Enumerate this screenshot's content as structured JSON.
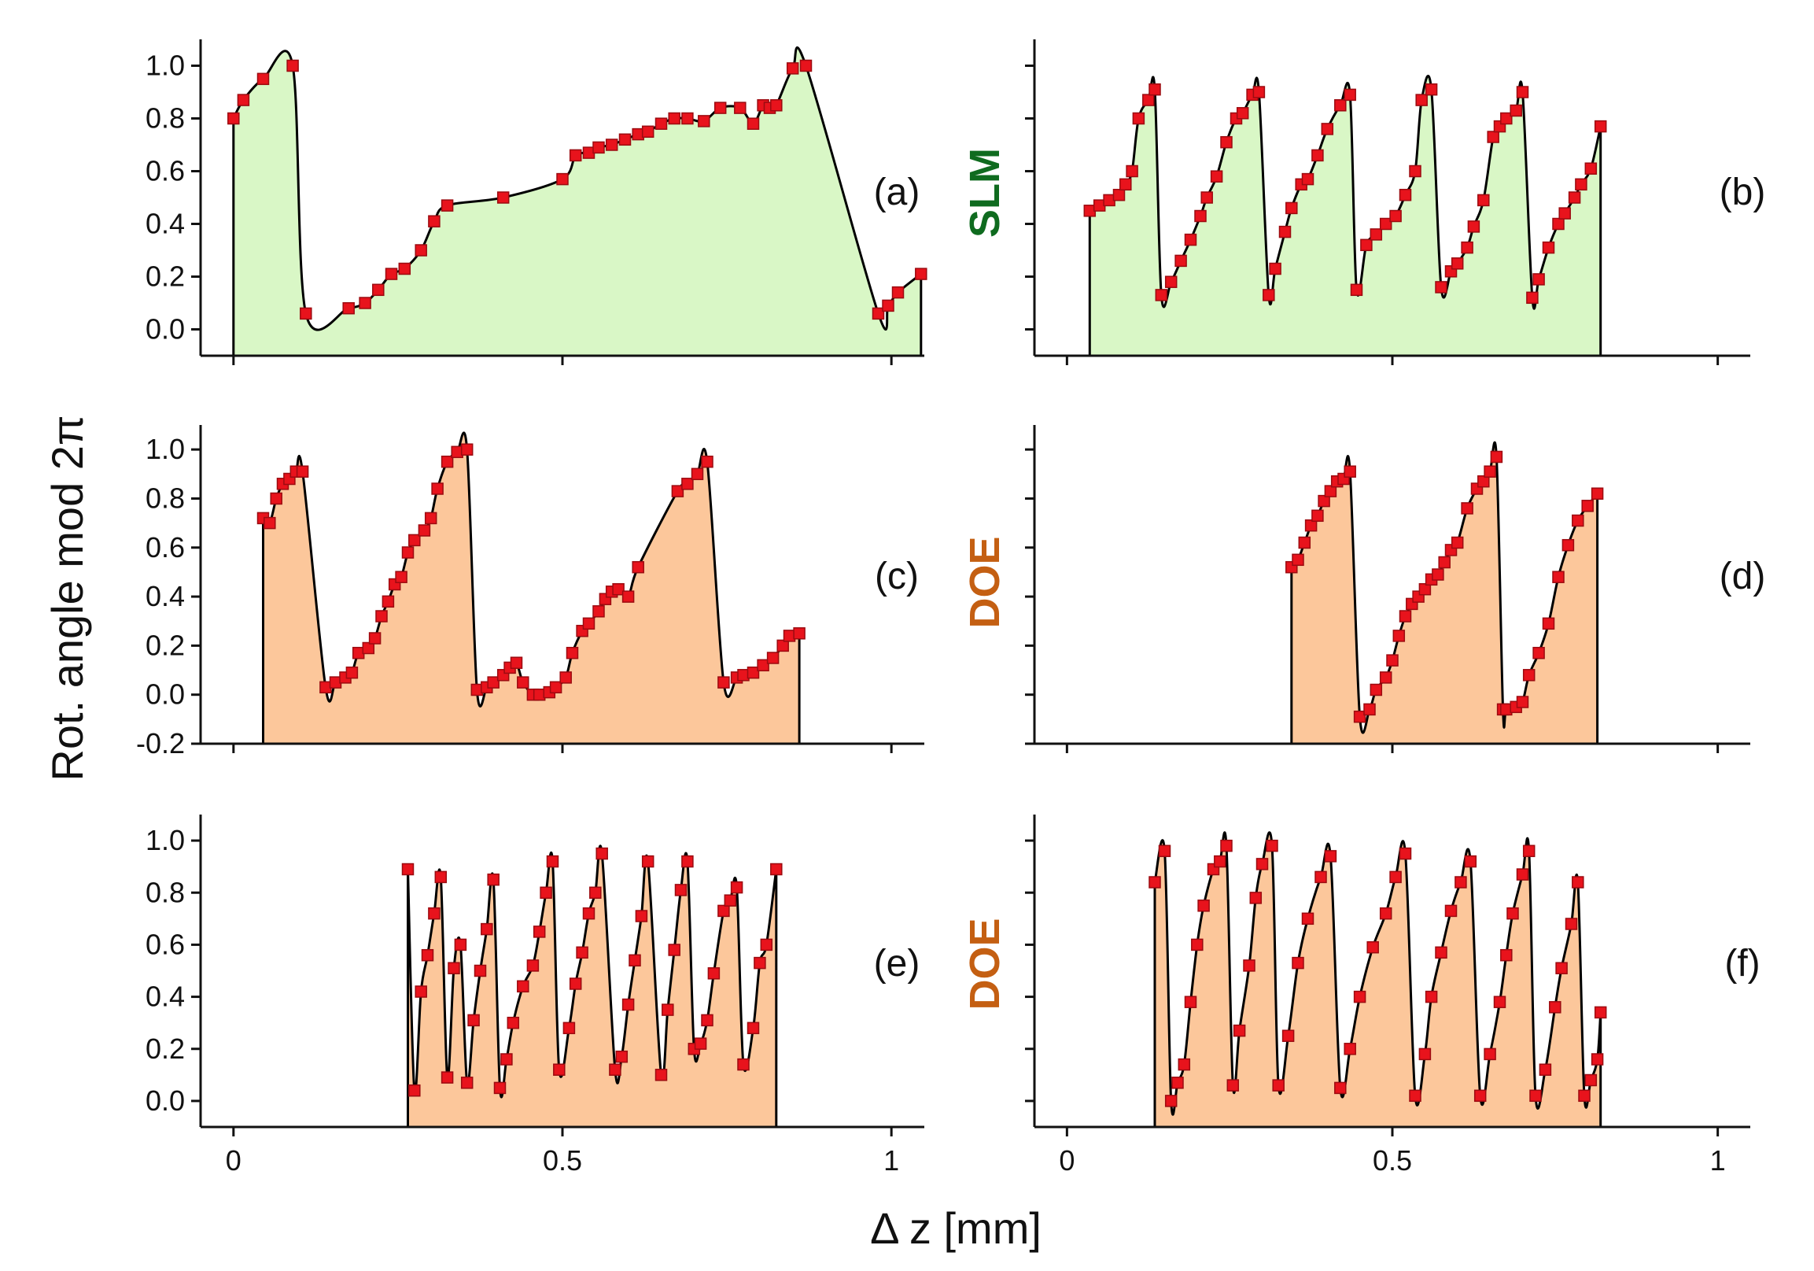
{
  "figure": {
    "ylabel": "Rot. angle mod 2π",
    "xlabel": "Δ z [mm]",
    "group_labels": [
      {
        "text": "SLM",
        "color": "#0f6b1f"
      },
      {
        "text": "DOE",
        "color": "#c45f12"
      },
      {
        "text": "DOE",
        "color": "#c45f12"
      }
    ]
  },
  "chart_data": [
    {
      "type": "line",
      "panel": "(a)",
      "fill_color": "#d9f7c6",
      "xlim": [
        -0.05,
        1.05
      ],
      "ylim": [
        -0.1,
        1.1
      ],
      "yticks": [
        0.0,
        0.2,
        0.4,
        0.6,
        0.8,
        1.0
      ],
      "ytick_labels": [
        "0.0",
        "0.2",
        "0.4",
        "0.6",
        "0.8",
        "1.0"
      ],
      "xticks": [
        0,
        0.5,
        1
      ],
      "xtick_labels": [],
      "x": [
        0,
        0.015,
        0.045,
        0.09,
        0.11,
        0.175,
        0.2,
        0.22,
        0.24,
        0.26,
        0.285,
        0.305,
        0.325,
        0.41,
        0.5,
        0.52,
        0.54,
        0.555,
        0.575,
        0.595,
        0.615,
        0.63,
        0.65,
        0.67,
        0.69,
        0.715,
        0.74,
        0.77,
        0.79,
        0.805,
        0.815,
        0.825,
        0.85,
        0.87,
        0.98,
        0.995,
        1.01,
        1.045
      ],
      "y": [
        0.8,
        0.87,
        0.95,
        1.0,
        0.06,
        0.08,
        0.1,
        0.15,
        0.21,
        0.23,
        0.3,
        0.41,
        0.47,
        0.5,
        0.57,
        0.66,
        0.67,
        0.69,
        0.7,
        0.72,
        0.74,
        0.75,
        0.78,
        0.8,
        0.8,
        0.79,
        0.84,
        0.84,
        0.78,
        0.85,
        0.84,
        0.85,
        0.99,
        1.0,
        0.06,
        0.09,
        0.14,
        0.21
      ]
    },
    {
      "type": "line",
      "panel": "(b)",
      "fill_color": "#d9f7c6",
      "xlim": [
        -0.05,
        1.05
      ],
      "ylim": [
        -0.1,
        1.1
      ],
      "yticks": [
        0.0,
        0.2,
        0.4,
        0.6,
        0.8,
        1.0
      ],
      "ytick_labels": [],
      "xticks": [
        0,
        0.5,
        1
      ],
      "xtick_labels": [],
      "x": [
        0.035,
        0.05,
        0.065,
        0.08,
        0.09,
        0.1,
        0.11,
        0.125,
        0.135,
        0.145,
        0.16,
        0.175,
        0.19,
        0.205,
        0.215,
        0.23,
        0.245,
        0.26,
        0.27,
        0.285,
        0.295,
        0.31,
        0.32,
        0.335,
        0.345,
        0.36,
        0.37,
        0.385,
        0.4,
        0.42,
        0.435,
        0.445,
        0.46,
        0.475,
        0.49,
        0.505,
        0.52,
        0.535,
        0.545,
        0.56,
        0.575,
        0.59,
        0.6,
        0.615,
        0.625,
        0.64,
        0.655,
        0.665,
        0.675,
        0.69,
        0.7,
        0.715,
        0.725,
        0.74,
        0.755,
        0.765,
        0.78,
        0.79,
        0.805,
        0.82
      ],
      "y": [
        0.45,
        0.47,
        0.49,
        0.51,
        0.55,
        0.6,
        0.8,
        0.87,
        0.91,
        0.13,
        0.18,
        0.26,
        0.34,
        0.43,
        0.5,
        0.58,
        0.71,
        0.8,
        0.82,
        0.89,
        0.9,
        0.13,
        0.23,
        0.37,
        0.46,
        0.55,
        0.57,
        0.66,
        0.76,
        0.85,
        0.89,
        0.15,
        0.32,
        0.36,
        0.4,
        0.43,
        0.51,
        0.6,
        0.87,
        0.91,
        0.16,
        0.22,
        0.25,
        0.31,
        0.39,
        0.49,
        0.73,
        0.77,
        0.8,
        0.83,
        0.9,
        0.12,
        0.19,
        0.31,
        0.4,
        0.44,
        0.5,
        0.55,
        0.61,
        0.77
      ]
    },
    {
      "type": "line",
      "panel": "(c)",
      "fill_color": "#fcc79b",
      "xlim": [
        -0.05,
        1.05
      ],
      "ylim": [
        -0.2,
        1.1
      ],
      "yticks": [
        -0.2,
        0.0,
        0.2,
        0.4,
        0.6,
        0.8,
        1.0
      ],
      "ytick_labels": [
        "-0.2",
        "0.0",
        "0.2",
        "0.4",
        "0.6",
        "0.8",
        "1.0"
      ],
      "xticks": [
        0,
        0.5,
        1
      ],
      "xtick_labels": [],
      "x": [
        0.045,
        0.055,
        0.065,
        0.075,
        0.085,
        0.095,
        0.105,
        0.14,
        0.155,
        0.17,
        0.18,
        0.19,
        0.205,
        0.215,
        0.225,
        0.235,
        0.245,
        0.255,
        0.265,
        0.275,
        0.29,
        0.3,
        0.31,
        0.325,
        0.34,
        0.355,
        0.37,
        0.385,
        0.395,
        0.41,
        0.42,
        0.43,
        0.44,
        0.455,
        0.465,
        0.48,
        0.49,
        0.505,
        0.515,
        0.53,
        0.54,
        0.555,
        0.565,
        0.575,
        0.585,
        0.6,
        0.615,
        0.675,
        0.69,
        0.705,
        0.72,
        0.745,
        0.765,
        0.775,
        0.79,
        0.805,
        0.82,
        0.835,
        0.845,
        0.86
      ],
      "y": [
        0.72,
        0.7,
        0.8,
        0.86,
        0.88,
        0.91,
        0.91,
        0.03,
        0.05,
        0.07,
        0.09,
        0.17,
        0.19,
        0.23,
        0.32,
        0.38,
        0.45,
        0.48,
        0.58,
        0.63,
        0.67,
        0.72,
        0.84,
        0.95,
        0.99,
        1.0,
        0.02,
        0.03,
        0.05,
        0.08,
        0.11,
        0.13,
        0.05,
        0.0,
        0.0,
        0.01,
        0.03,
        0.07,
        0.17,
        0.26,
        0.29,
        0.34,
        0.39,
        0.42,
        0.43,
        0.4,
        0.52,
        0.83,
        0.86,
        0.9,
        0.95,
        0.05,
        0.07,
        0.08,
        0.09,
        0.12,
        0.15,
        0.2,
        0.24,
        0.25
      ]
    },
    {
      "type": "line",
      "panel": "(d)",
      "fill_color": "#fcc79b",
      "xlim": [
        -0.05,
        1.05
      ],
      "ylim": [
        -0.2,
        1.1
      ],
      "yticks": [
        -0.2,
        0.0,
        0.2,
        0.4,
        0.6,
        0.8,
        1.0
      ],
      "ytick_labels": [],
      "xticks": [
        0,
        0.5,
        1
      ],
      "xtick_labels": [],
      "x": [
        0.345,
        0.355,
        0.365,
        0.375,
        0.385,
        0.395,
        0.405,
        0.415,
        0.425,
        0.435,
        0.45,
        0.465,
        0.475,
        0.49,
        0.5,
        0.51,
        0.52,
        0.53,
        0.54,
        0.55,
        0.56,
        0.57,
        0.58,
        0.59,
        0.6,
        0.615,
        0.63,
        0.64,
        0.65,
        0.66,
        0.67,
        0.675,
        0.69,
        0.7,
        0.71,
        0.725,
        0.74,
        0.755,
        0.77,
        0.785,
        0.8,
        0.815
      ],
      "y": [
        0.52,
        0.55,
        0.62,
        0.69,
        0.73,
        0.79,
        0.83,
        0.87,
        0.88,
        0.91,
        -0.09,
        -0.06,
        0.02,
        0.07,
        0.14,
        0.24,
        0.32,
        0.37,
        0.4,
        0.43,
        0.47,
        0.49,
        0.54,
        0.59,
        0.62,
        0.76,
        0.84,
        0.87,
        0.91,
        0.97,
        -0.06,
        -0.06,
        -0.05,
        -0.03,
        0.08,
        0.17,
        0.29,
        0.48,
        0.61,
        0.71,
        0.77,
        0.82
      ]
    },
    {
      "type": "line",
      "panel": "(e)",
      "fill_color": "#fcc79b",
      "xlim": [
        -0.05,
        1.05
      ],
      "ylim": [
        -0.1,
        1.1
      ],
      "yticks": [
        0.0,
        0.2,
        0.4,
        0.6,
        0.8,
        1.0
      ],
      "ytick_labels": [
        "0.0",
        "0.2",
        "0.4",
        "0.6",
        "0.8",
        "1.0"
      ],
      "xticks": [
        0,
        0.5,
        1
      ],
      "xtick_labels": [
        "0",
        "0.5",
        "1"
      ],
      "x": [
        0.265,
        0.275,
        0.285,
        0.295,
        0.305,
        0.315,
        0.325,
        0.335,
        0.345,
        0.355,
        0.365,
        0.375,
        0.385,
        0.395,
        0.405,
        0.415,
        0.425,
        0.44,
        0.455,
        0.465,
        0.475,
        0.485,
        0.495,
        0.51,
        0.52,
        0.53,
        0.54,
        0.55,
        0.56,
        0.58,
        0.59,
        0.6,
        0.61,
        0.62,
        0.63,
        0.65,
        0.66,
        0.67,
        0.68,
        0.69,
        0.7,
        0.71,
        0.72,
        0.73,
        0.745,
        0.755,
        0.765,
        0.775,
        0.79,
        0.8,
        0.81,
        0.825
      ],
      "y": [
        0.89,
        0.04,
        0.42,
        0.56,
        0.72,
        0.86,
        0.09,
        0.51,
        0.6,
        0.07,
        0.31,
        0.5,
        0.66,
        0.85,
        0.05,
        0.16,
        0.3,
        0.44,
        0.52,
        0.65,
        0.8,
        0.92,
        0.12,
        0.28,
        0.45,
        0.57,
        0.72,
        0.8,
        0.95,
        0.12,
        0.17,
        0.37,
        0.54,
        0.71,
        0.92,
        0.1,
        0.35,
        0.58,
        0.81,
        0.92,
        0.2,
        0.22,
        0.31,
        0.49,
        0.73,
        0.77,
        0.82,
        0.14,
        0.28,
        0.53,
        0.6,
        0.89
      ]
    },
    {
      "type": "line",
      "panel": "(f)",
      "fill_color": "#fcc79b",
      "xlim": [
        -0.05,
        1.05
      ],
      "ylim": [
        -0.1,
        1.1
      ],
      "yticks": [
        0.0,
        0.2,
        0.4,
        0.6,
        0.8,
        1.0
      ],
      "ytick_labels": [],
      "xticks": [
        0,
        0.5,
        1
      ],
      "xtick_labels": [
        "0",
        "0.5",
        "1"
      ],
      "x": [
        0.135,
        0.15,
        0.16,
        0.17,
        0.18,
        0.19,
        0.2,
        0.21,
        0.225,
        0.235,
        0.245,
        0.255,
        0.265,
        0.28,
        0.29,
        0.3,
        0.315,
        0.325,
        0.34,
        0.355,
        0.37,
        0.39,
        0.405,
        0.42,
        0.435,
        0.45,
        0.47,
        0.49,
        0.505,
        0.52,
        0.535,
        0.55,
        0.56,
        0.575,
        0.59,
        0.605,
        0.62,
        0.635,
        0.65,
        0.665,
        0.675,
        0.685,
        0.7,
        0.71,
        0.72,
        0.735,
        0.75,
        0.76,
        0.775,
        0.785,
        0.795,
        0.805,
        0.815,
        0.82
      ],
      "y": [
        0.84,
        0.96,
        0.0,
        0.07,
        0.14,
        0.38,
        0.6,
        0.75,
        0.89,
        0.92,
        0.98,
        0.06,
        0.27,
        0.52,
        0.78,
        0.91,
        0.98,
        0.06,
        0.25,
        0.53,
        0.7,
        0.86,
        0.94,
        0.05,
        0.2,
        0.4,
        0.59,
        0.72,
        0.86,
        0.95,
        0.02,
        0.18,
        0.4,
        0.57,
        0.73,
        0.84,
        0.92,
        0.02,
        0.18,
        0.38,
        0.56,
        0.72,
        0.87,
        0.96,
        0.02,
        0.12,
        0.36,
        0.51,
        0.68,
        0.84,
        0.02,
        0.08,
        0.16,
        0.34
      ]
    }
  ]
}
